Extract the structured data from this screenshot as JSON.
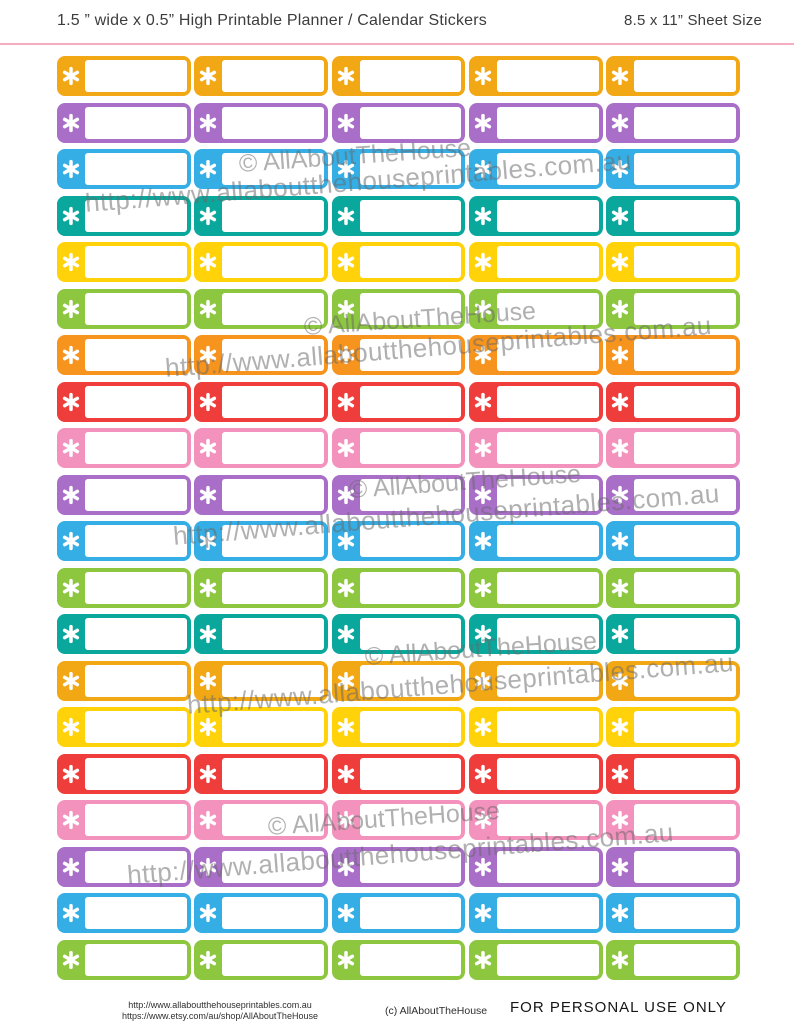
{
  "header": {
    "title": "1.5 ” wide x 0.5” High Printable Planner / Calendar Stickers",
    "sheet_size": "8.5 x 11” Sheet Size"
  },
  "grid": {
    "columns": 5,
    "row_colors": [
      "#F2A715",
      "#A96FC8",
      "#35AEE5",
      "#0AA79C",
      "#FFD20A",
      "#8DC63F",
      "#F7941E",
      "#EE3D3B",
      "#F492BE",
      "#A96FC8",
      "#35AEE5",
      "#8DC63F",
      "#0AA79C",
      "#F2A715",
      "#FFD20A",
      "#EE3D3B",
      "#F492BE",
      "#A96FC8",
      "#35AEE5",
      "#8DC63F"
    ],
    "accent_asterisk_color": "#FFFFFF"
  },
  "watermarks": {
    "copyright": "© AllAboutTheHouse",
    "url": "http://www.allaboutthehouseprintables.com.au"
  },
  "footer": {
    "url": "http://www.allaboutthehouseprintables.com.au",
    "etsy_url": "https://www.etsy.com/au/shop/AllAboutTheHouse",
    "copyright": "(c) AllAboutTheHouse",
    "license": "FOR PERSONAL USE ONLY"
  }
}
